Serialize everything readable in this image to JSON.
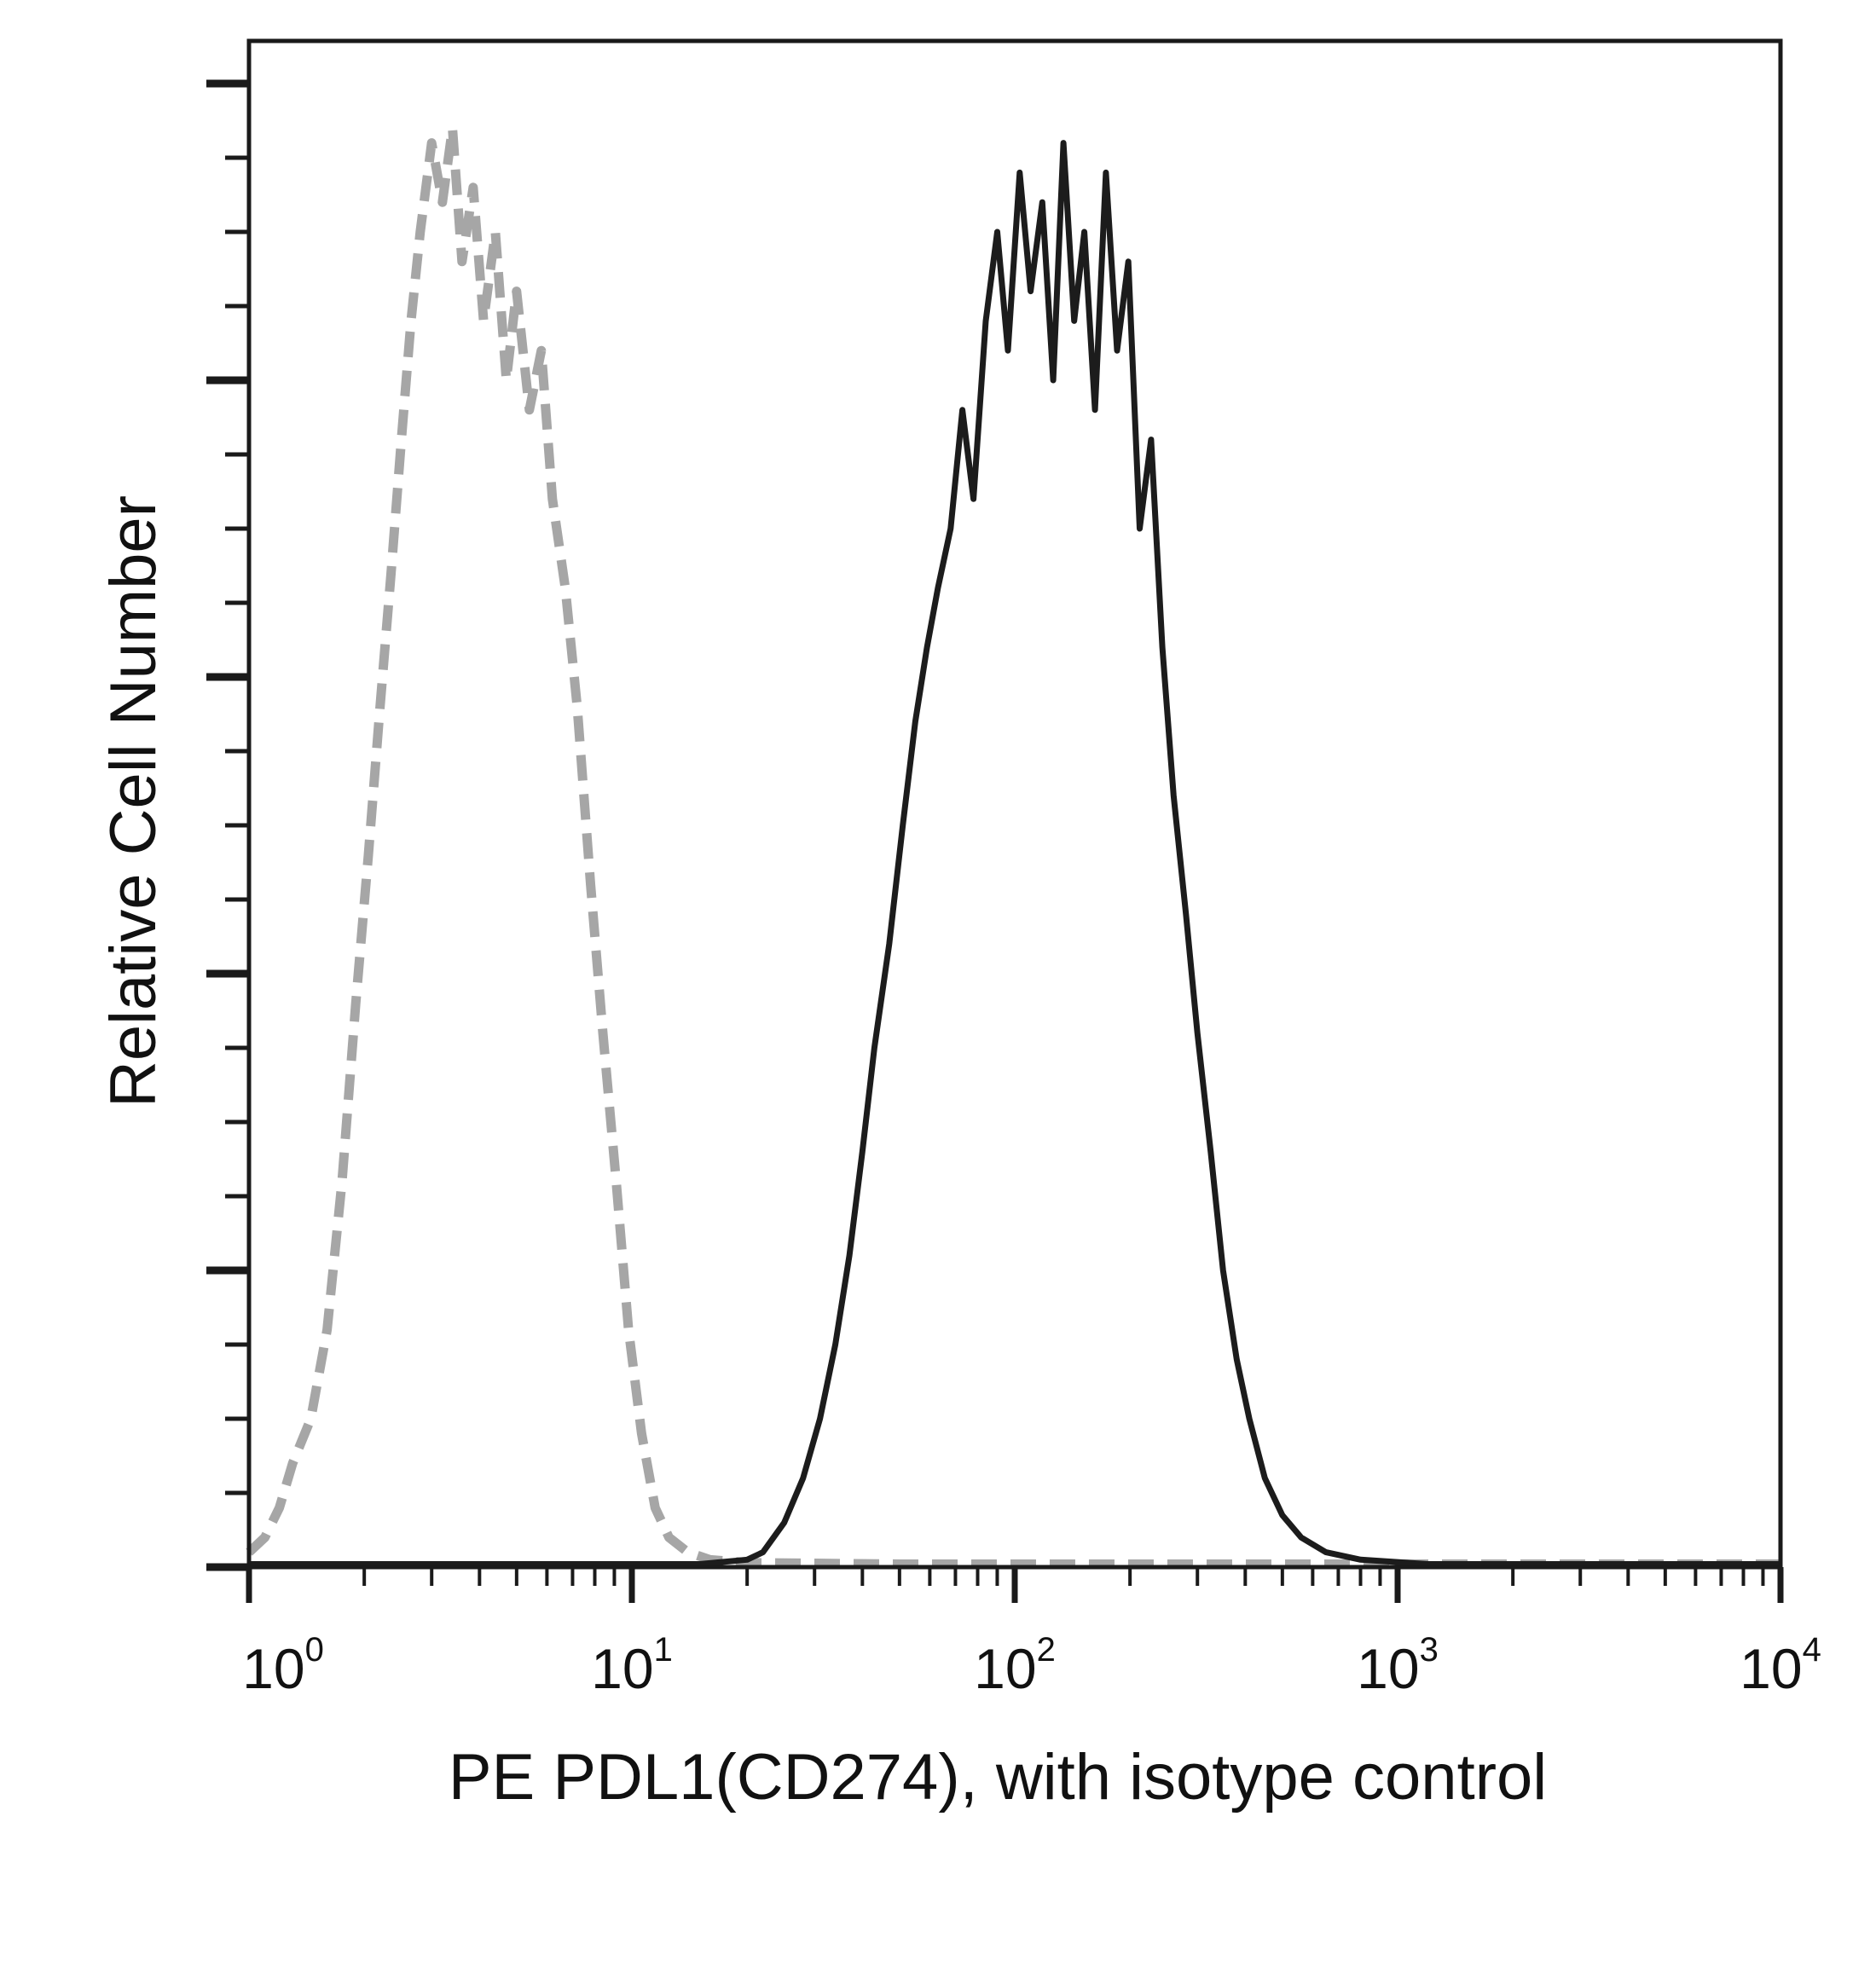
{
  "chart_data": {
    "type": "line",
    "title": "",
    "xlabel": "PE PDL1(CD274), with isotype control",
    "ylabel": "Relative Cell Number",
    "xscale": "log",
    "xlim": [
      1,
      10000
    ],
    "ylim": [
      0,
      100
    ],
    "grid": false,
    "legend": "none",
    "x_ticks": [
      {
        "base": "10",
        "exp": "0",
        "value": 1
      },
      {
        "base": "10",
        "exp": "1",
        "value": 10
      },
      {
        "base": "10",
        "exp": "2",
        "value": 100
      },
      {
        "base": "10",
        "exp": "3",
        "value": 1000
      },
      {
        "base": "10",
        "exp": "4",
        "value": 10000
      }
    ],
    "series": [
      {
        "style": "dashed",
        "color": "#a6a6a6",
        "x": [
          1.0,
          1.1,
          1.2,
          1.3,
          1.45,
          1.6,
          1.75,
          1.9,
          2.05,
          2.2,
          2.35,
          2.5,
          2.65,
          2.8,
          3.0,
          3.2,
          3.4,
          3.6,
          3.85,
          4.1,
          4.4,
          4.7,
          5.0,
          5.4,
          5.8,
          6.2,
          6.7,
          7.2,
          7.8,
          8.4,
          9.1,
          9.8,
          10.6,
          11.5,
          12.5,
          14.0,
          16.0,
          20.0,
          50.0,
          200.0,
          1000.0,
          10000.0
        ],
        "y": [
          1.0,
          2.0,
          4.0,
          7.0,
          10.0,
          16.0,
          26.0,
          38.0,
          48.0,
          58.0,
          67.0,
          76.0,
          84.0,
          90.0,
          96.0,
          92.0,
          97.0,
          88.0,
          93.0,
          84.0,
          90.0,
          80.0,
          86.0,
          78.0,
          82.0,
          72.0,
          66.0,
          58.0,
          46.0,
          36.0,
          26.0,
          16.0,
          9.0,
          4.0,
          2.0,
          1.0,
          0.5,
          0.3,
          0.2,
          0.2,
          0.2,
          0.2
        ]
      },
      {
        "style": "solid",
        "color": "#1c1c1c",
        "x": [
          1.0,
          15.0,
          20.0,
          22.0,
          25.0,
          28.0,
          31.0,
          34.0,
          37.0,
          40.0,
          43.0,
          47.0,
          51.0,
          55.0,
          59.0,
          63.0,
          68.0,
          73.0,
          78.0,
          84.0,
          90.0,
          96.0,
          103.0,
          110.0,
          118.0,
          126.0,
          134.0,
          143.0,
          152.0,
          162.0,
          173.0,
          185.0,
          198.0,
          212.0,
          227.0,
          243.0,
          260.0,
          280.0,
          300.0,
          325.0,
          350.0,
          380.0,
          410.0,
          450.0,
          500.0,
          560.0,
          650.0,
          800.0,
          1200.0,
          10000.0
        ],
        "y": [
          0.2,
          0.2,
          0.5,
          1.0,
          3.0,
          6.0,
          10.0,
          15.0,
          21.0,
          28.0,
          35.0,
          42.0,
          50.0,
          57.0,
          62.0,
          66.0,
          70.0,
          78.0,
          72.0,
          84.0,
          90.0,
          82.0,
          94.0,
          86.0,
          92.0,
          80.0,
          96.0,
          84.0,
          90.0,
          78.0,
          94.0,
          82.0,
          88.0,
          70.0,
          76.0,
          62.0,
          52.0,
          44.0,
          36.0,
          28.0,
          20.0,
          14.0,
          10.0,
          6.0,
          3.5,
          2.0,
          1.0,
          0.5,
          0.2,
          0.2
        ]
      }
    ]
  }
}
